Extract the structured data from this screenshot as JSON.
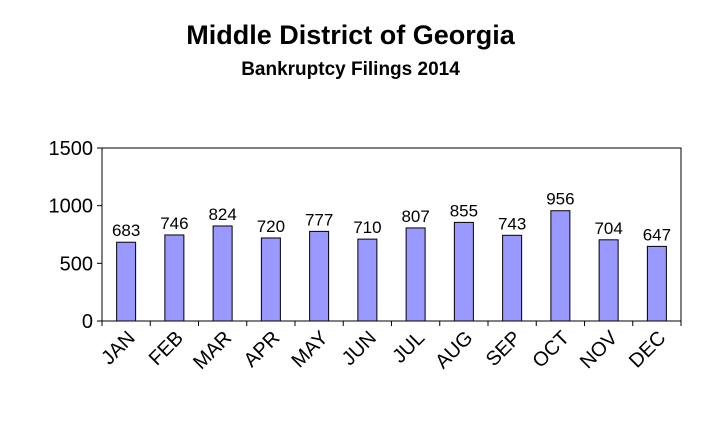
{
  "chart_data": {
    "type": "bar",
    "title": "Middle District of Georgia",
    "subtitle": "Bankruptcy  Filings 2014",
    "xlabel": "",
    "ylabel": "",
    "categories": [
      "JAN",
      "FEB",
      "MAR",
      "APR",
      "MAY",
      "JUN",
      "JUL",
      "AUG",
      "SEP",
      "OCT",
      "NOV",
      "DEC"
    ],
    "values": [
      683,
      746,
      824,
      720,
      777,
      710,
      807,
      855,
      743,
      956,
      704,
      647
    ],
    "ylim": [
      0,
      1500
    ],
    "yticks": [
      0,
      500,
      1000,
      1500
    ],
    "grid": false,
    "legend": "none",
    "bar_color": "#9999ff",
    "bar_edge_color": "#000000"
  }
}
